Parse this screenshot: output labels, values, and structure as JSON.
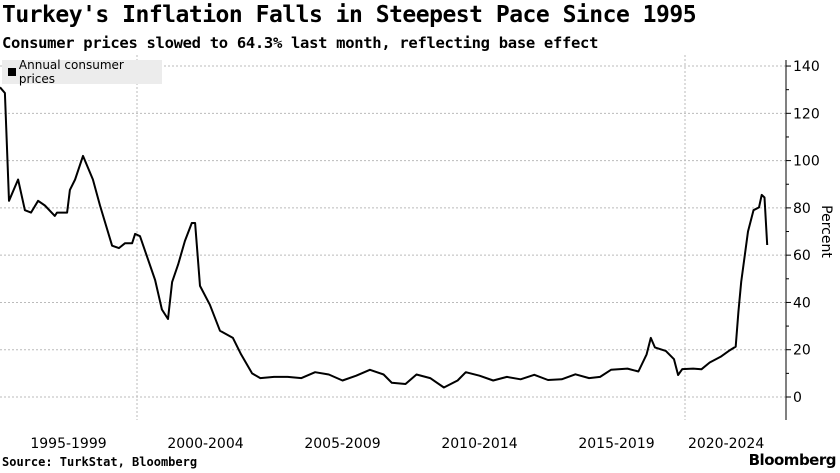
{
  "title": "Turkey's Inflation Falls in Steepest Pace Since 1995",
  "subtitle": "Consumer prices slowed to 64.3% last month, reflecting base effect",
  "source": "Source: TurkStat, Bloomberg",
  "logo": "Bloomberg",
  "chart_data": {
    "type": "line",
    "title": "Turkey's Inflation Falls in Steepest Pace Since 1995",
    "xlabel": "",
    "ylabel": "Percent",
    "ylim": [
      -5,
      140
    ],
    "xlim": [
      1995,
      2024.6
    ],
    "yticks": [
      0,
      20,
      40,
      60,
      80,
      100,
      120,
      140
    ],
    "xtick_labels": [
      "1995-1999",
      "2000-2004",
      "2005-2009",
      "2010-2014",
      "2015-2019",
      "2020-2024"
    ],
    "xtick_centers": [
      1997.5,
      2002.5,
      2007.5,
      2012.5,
      2017.5,
      2021.5
    ],
    "grid": true,
    "legend_position": "top-left",
    "series": [
      {
        "name": "Annual consumer prices",
        "color": "#000000",
        "x": [
          1995.0,
          1995.18,
          1995.33,
          1995.66,
          1995.91,
          1996.13,
          1996.39,
          1996.64,
          1997.0,
          1997.08,
          1997.45,
          1997.55,
          1997.74,
          1998.03,
          1998.39,
          1998.65,
          1999.09,
          1999.34,
          1999.56,
          1999.82,
          1999.93,
          2000.11,
          2000.29,
          2000.66,
          2000.91,
          2001.13,
          2001.28,
          2001.5,
          2001.75,
          2002.0,
          2002.12,
          2002.3,
          2002.66,
          2003.03,
          2003.5,
          2003.8,
          2004.2,
          2004.5,
          2005.0,
          2005.5,
          2006.0,
          2006.5,
          2007.0,
          2007.5,
          2008.0,
          2008.5,
          2009.0,
          2009.3,
          2009.8,
          2010.2,
          2010.7,
          2011.2,
          2011.7,
          2012.0,
          2012.5,
          2013.0,
          2013.5,
          2014.0,
          2014.5,
          2015.0,
          2015.5,
          2016.0,
          2016.5,
          2016.9,
          2017.3,
          2017.9,
          2018.3,
          2018.6,
          2018.75,
          2018.9,
          2019.3,
          2019.6,
          2019.75,
          2019.9,
          2020.3,
          2020.6,
          2020.9,
          2021.3,
          2021.6,
          2021.85,
          2021.95,
          2022.05,
          2022.3,
          2022.5,
          2022.7,
          2022.8,
          2022.9,
          2023.0
        ],
        "values": [
          131,
          128.6,
          83,
          92,
          79,
          78,
          83,
          81,
          76.6,
          78,
          78,
          87.6,
          92,
          102,
          92,
          81,
          64,
          63,
          65,
          65,
          69,
          68,
          62,
          49.5,
          37,
          33,
          48.6,
          56,
          66,
          73.6,
          73.6,
          47,
          39,
          28,
          25,
          18,
          10,
          8,
          8.5,
          8.5,
          8,
          10.5,
          9.5,
          7,
          9,
          11.5,
          9.5,
          6,
          5.5,
          9.5,
          8,
          4,
          7,
          10.5,
          9,
          7,
          8.5,
          7.5,
          9.4,
          7.2,
          7.5,
          9.6,
          8,
          8.5,
          11.5,
          12,
          10.8,
          18,
          25,
          21,
          19.5,
          16,
          9.3,
          11.8,
          12,
          11.7,
          14.6,
          17,
          19.5,
          21.3,
          36,
          48.7,
          70,
          79,
          80.2,
          85.5,
          84.4,
          64.3
        ]
      }
    ]
  }
}
